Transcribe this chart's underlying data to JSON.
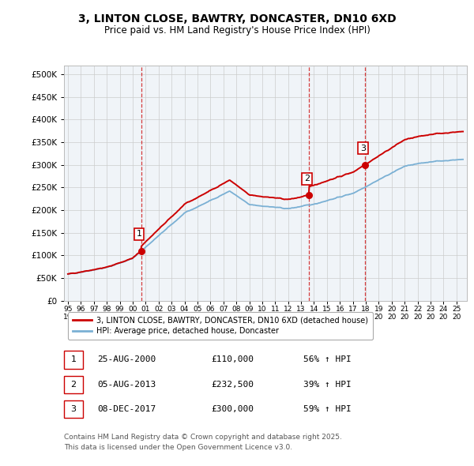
{
  "title": "3, LINTON CLOSE, BAWTRY, DONCASTER, DN10 6XD",
  "subtitle": "Price paid vs. HM Land Registry's House Price Index (HPI)",
  "property_label": "3, LINTON CLOSE, BAWTRY, DONCASTER, DN10 6XD (detached house)",
  "hpi_label": "HPI: Average price, detached house, Doncaster",
  "property_color": "#cc0000",
  "hpi_color": "#7ab0d4",
  "background_color": "#f0f4f8",
  "grid_color": "#cccccc",
  "sale_points": [
    {
      "index": 1,
      "date_num": 2000.65,
      "price": 110000,
      "label": "25-AUG-2000",
      "price_str": "£110,000",
      "hpi_str": "56% ↑ HPI"
    },
    {
      "index": 2,
      "date_num": 2013.59,
      "price": 232500,
      "label": "05-AUG-2013",
      "price_str": "£232,500",
      "hpi_str": "39% ↑ HPI"
    },
    {
      "index": 3,
      "date_num": 2017.93,
      "price": 300000,
      "label": "08-DEC-2017",
      "price_str": "£300,000",
      "hpi_str": "59% ↑ HPI"
    }
  ],
  "ylim": [
    0,
    520000
  ],
  "yticks": [
    0,
    50000,
    100000,
    150000,
    200000,
    250000,
    300000,
    350000,
    400000,
    450000,
    500000
  ],
  "xlim": [
    1994.7,
    2025.8
  ],
  "footer_line1": "Contains HM Land Registry data © Crown copyright and database right 2025.",
  "footer_line2": "This data is licensed under the Open Government Licence v3.0."
}
